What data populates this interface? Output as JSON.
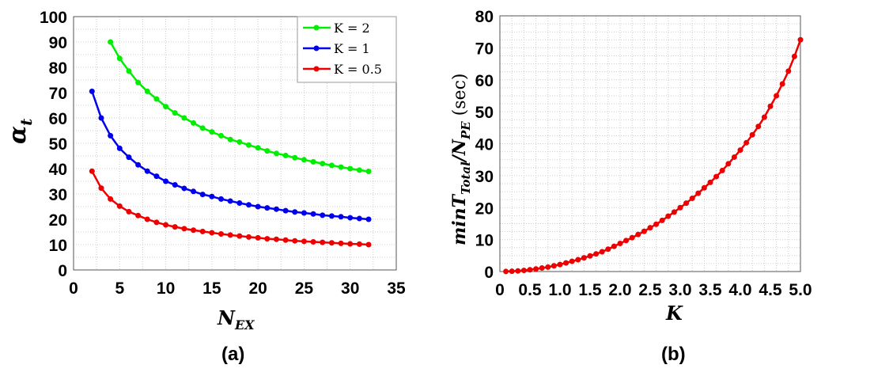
{
  "chart_data": [
    {
      "type": "line",
      "caption": "(a)",
      "xlabel": "N",
      "xlabel_sub": "EX",
      "ylabel": "α",
      "ylabel_sub": "t",
      "xlim": [
        0,
        35
      ],
      "ylim": [
        0,
        100
      ],
      "grid": true,
      "legend_position": "top-right",
      "xticks": [
        "0",
        "5",
        "10",
        "15",
        "20",
        "25",
        "30",
        "35"
      ],
      "yticks": [
        "0",
        "10",
        "20",
        "30",
        "40",
        "50",
        "60",
        "70",
        "80",
        "90",
        "100"
      ],
      "series": [
        {
          "name": "K = 2",
          "color": "#00ee00",
          "x_start": 4,
          "values": [
            90,
            83.5,
            78.5,
            74,
            70.5,
            67.5,
            64.5,
            62,
            60,
            58,
            56,
            54.5,
            53,
            51.5,
            50.5,
            49.3,
            48.2,
            47,
            46,
            45.2,
            44.3,
            43.5,
            42.7,
            42,
            41.3,
            40.6,
            40,
            39.4,
            38.9
          ]
        },
        {
          "name": "K = 1",
          "color": "#0000ee",
          "x_start": 2,
          "values": [
            70.5,
            60,
            53,
            48,
            44.5,
            41.5,
            39,
            37,
            35,
            33.6,
            32.2,
            31,
            29.8,
            29,
            28,
            27.2,
            26.4,
            25.7,
            25,
            24.5,
            24,
            23.4,
            22.9,
            22.5,
            22.1,
            21.6,
            21.3,
            21,
            20.6,
            20.3,
            20
          ]
        },
        {
          "name": "K = 0.5",
          "color": "#ee0000",
          "x_start": 2,
          "values": [
            39,
            32.3,
            28,
            25.2,
            23,
            21.5,
            20,
            18.8,
            17.8,
            17,
            16.3,
            15.7,
            15.2,
            14.7,
            14.2,
            13.8,
            13.4,
            13,
            12.7,
            12.3,
            12.1,
            11.8,
            11.5,
            11.3,
            11.1,
            10.9,
            10.7,
            10.5,
            10.3,
            10.2,
            10
          ]
        }
      ]
    },
    {
      "type": "line",
      "caption": "(b)",
      "xlabel": "K",
      "ylabel": "minT",
      "ylabel_sub": "Total",
      "ylabel_mid": "/N",
      "ylabel_sub2": "PE",
      "ylabel_unit": " (sec)",
      "xlim": [
        0,
        5
      ],
      "ylim": [
        0,
        80
      ],
      "grid": true,
      "xticks": [
        "0",
        "0.5",
        "1.0",
        "1.5",
        "2.0",
        "2.5",
        "3.0",
        "3.5",
        "4.0",
        "4.5",
        "5.0"
      ],
      "yticks": [
        "0",
        "10",
        "20",
        "30",
        "40",
        "50",
        "60",
        "70",
        "80"
      ],
      "series": [
        {
          "name": "minT_Total/N_PE",
          "color": "#ee0000",
          "x_start": 0.1,
          "x_step": 0.1,
          "values": [
            0.02,
            0.08,
            0.2,
            0.35,
            0.55,
            0.8,
            1.1,
            1.4,
            1.8,
            2.2,
            2.7,
            3.2,
            3.7,
            4.3,
            4.9,
            5.5,
            6.2,
            7.0,
            7.9,
            8.8,
            9.7,
            10.6,
            11.6,
            12.6,
            13.7,
            14.8,
            16.0,
            17.3,
            18.6,
            20.0,
            21.4,
            22.9,
            24.5,
            26.2,
            27.9,
            29.7,
            31.6,
            33.7,
            35.8,
            38.0,
            40.3,
            42.8,
            45.4,
            48.3,
            51.7,
            55.0,
            58.7,
            62.7,
            67.3,
            72.5
          ]
        }
      ]
    }
  ]
}
